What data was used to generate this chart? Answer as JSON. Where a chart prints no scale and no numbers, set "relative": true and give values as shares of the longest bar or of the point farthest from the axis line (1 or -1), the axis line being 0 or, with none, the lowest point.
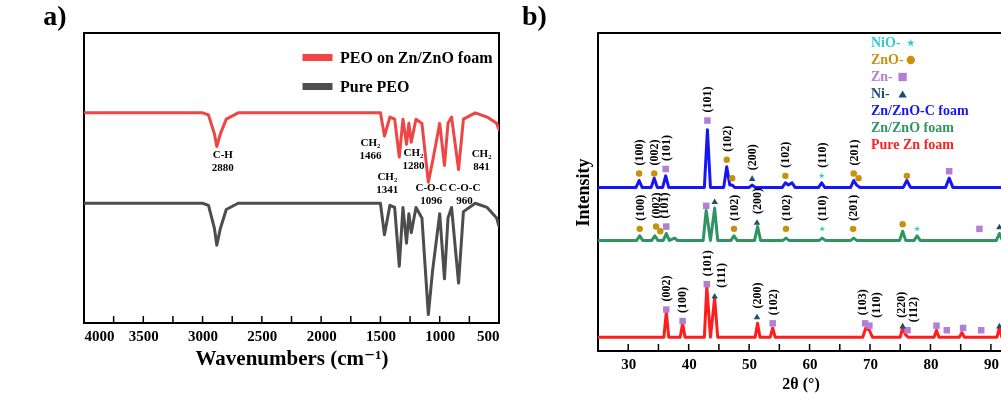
{
  "chart_data": [
    {
      "type": "line",
      "title": "a)",
      "xlabel": "Wavenumbers (cm⁻¹)",
      "relative": true,
      "legend": "top right",
      "xlim": [
        4000,
        500
      ],
      "xticks": [
        4000,
        {
          "value": 3750,
          "label": null
        },
        3500,
        {
          "value": 3250,
          "label": null
        },
        3000,
        {
          "value": 2750,
          "label": null
        },
        2500,
        {
          "value": 2250,
          "label": null
        },
        2000,
        {
          "value": 1750,
          "label": null
        },
        1500,
        {
          "value": 1250,
          "label": null
        },
        1000,
        {
          "value": 750,
          "label": null
        },
        500
      ],
      "x": [
        4000,
        3000,
        2950,
        2900,
        2880,
        2850,
        2800,
        2700,
        1500,
        1466,
        1420,
        1380,
        1341,
        1310,
        1280,
        1260,
        1240,
        1200,
        1150,
        1096,
        1060,
        1000,
        960,
        930,
        900,
        841,
        800,
        700,
        600,
        520,
        500
      ],
      "series": [
        {
          "name": "PEO on Zn/ZnO foam",
          "color": "#f04545",
          "values": [
            1.0,
            1.0,
            0.99,
            0.9,
            0.84,
            0.9,
            0.97,
            1.0,
            1.0,
            0.89,
            0.98,
            0.97,
            0.79,
            0.97,
            0.85,
            0.95,
            0.86,
            0.97,
            0.95,
            0.67,
            0.77,
            0.95,
            0.75,
            0.95,
            0.98,
            0.73,
            0.97,
            1.0,
            0.98,
            0.95,
            0.92
          ]
        },
        {
          "name": "Pure PEO",
          "color": "#4d4d4d",
          "values": [
            0.57,
            0.57,
            0.56,
            0.45,
            0.37,
            0.45,
            0.54,
            0.57,
            0.57,
            0.42,
            0.56,
            0.55,
            0.27,
            0.55,
            0.38,
            0.52,
            0.43,
            0.55,
            0.5,
            0.04,
            0.25,
            0.52,
            0.21,
            0.5,
            0.55,
            0.19,
            0.53,
            0.57,
            0.55,
            0.5,
            0.46
          ]
        }
      ],
      "annotations": [
        {
          "text": "C-H\n2880",
          "x": 2880,
          "y": 0.84
        },
        {
          "text": "CH₂\n1466",
          "x": 1466,
          "y": 0.89
        },
        {
          "text": "CH₂\n1341",
          "x": 1341,
          "y": 0.79
        },
        {
          "text": "CH₂\n1280",
          "x": 1280,
          "y": 0.85
        },
        {
          "text": "C-O-C\n1096",
          "x": 1096,
          "y": 0.67
        },
        {
          "text": "C-O-C\n960",
          "x": 960,
          "y": 0.75
        },
        {
          "text": "CH₂\n841",
          "x": 841,
          "y": 0.73
        }
      ]
    },
    {
      "type": "line",
      "title": "b)",
      "xlabel": "2θ (°)",
      "ylabel": "Intensity",
      "relative": true,
      "legend": "top right",
      "xlim": [
        25,
        92
      ],
      "xticks": [
        30,
        {
          "value": 35,
          "label": null
        },
        40,
        {
          "value": 45,
          "label": null
        },
        50,
        {
          "value": 55,
          "label": null
        },
        60,
        {
          "value": 65,
          "label": null
        },
        70,
        {
          "value": 75,
          "label": null
        },
        80,
        {
          "value": 85,
          "label": null
        },
        90
      ],
      "series": [
        {
          "name": "NiO-",
          "type": "scatter",
          "marker": "star",
          "color": "#33cccc",
          "x": [
            62.0,
            62.1,
            77.8
          ],
          "values": [
            0.76,
            0.53,
            0.53
          ]
        },
        {
          "name": "ZnO-",
          "type": "scatter",
          "marker": "circle",
          "color": "#c8900f",
          "x": [
            31.8,
            34.3,
            46.3,
            47.2,
            56.0,
            67.3,
            68.1,
            76.1,
            31.9,
            34.6,
            35.3,
            47.5,
            56.1,
            67.2,
            75.4
          ],
          "values": [
            0.77,
            0.77,
            0.83,
            0.75,
            0.76,
            0.77,
            0.75,
            0.76,
            0.53,
            0.54,
            0.52,
            0.53,
            0.53,
            0.53,
            0.55
          ]
        },
        {
          "name": "Zn-",
          "type": "scatter",
          "marker": "square",
          "color": "#b27fd6",
          "x": [
            36.2,
            43.1,
            83.1,
            36.3,
            42.9,
            88.1,
            36.3,
            39.0,
            43.0,
            53.9,
            69.2,
            69.9,
            76.2,
            81.0,
            82.7,
            85.4,
            88.4
          ],
          "values": [
            0.79,
            1.0,
            0.78,
            0.54,
            0.63,
            0.53,
            0.18,
            0.13,
            0.29,
            0.12,
            0.12,
            0.11,
            0.09,
            0.11,
            0.09,
            0.1,
            0.09
          ]
        },
        {
          "name": "Ni-",
          "type": "scatter",
          "marker": "triangle",
          "color": "#1f4e6e",
          "x": [
            50.5,
            44.3,
            51.3,
            91.4,
            44.3,
            51.3,
            75.4,
            91.4
          ],
          "values": [
            0.75,
            0.65,
            0.56,
            0.54,
            0.24,
            0.15,
            0.11,
            0.11
          ]
        },
        {
          "name": "Zn/ZnO-C foam",
          "color": "#1515f5",
          "x": [
            25,
            31.3,
            31.8,
            32.3,
            33.8,
            34.3,
            34.8,
            35.7,
            36.2,
            36.7,
            42.6,
            43.1,
            43.6,
            45.8,
            46.3,
            46.8,
            47.2,
            47.6,
            50.0,
            50.5,
            51.0,
            55.5,
            56.0,
            56.5,
            57.1,
            57.6,
            61.5,
            62.0,
            62.5,
            66.8,
            67.3,
            67.8,
            68.3,
            75.5,
            76.1,
            76.7,
            82.5,
            83.1,
            83.7,
            92
          ],
          "values": [
            0.71,
            0.71,
            0.74,
            0.71,
            0.71,
            0.75,
            0.71,
            0.71,
            0.76,
            0.71,
            0.71,
            0.96,
            0.71,
            0.71,
            0.8,
            0.72,
            0.72,
            0.71,
            0.71,
            0.72,
            0.71,
            0.71,
            0.73,
            0.72,
            0.73,
            0.71,
            0.71,
            0.73,
            0.71,
            0.71,
            0.74,
            0.72,
            0.71,
            0.71,
            0.74,
            0.71,
            0.71,
            0.75,
            0.71,
            0.71
          ]
        },
        {
          "name": "Zn/ZnO foam",
          "color": "#2e9460",
          "x": [
            25,
            31.4,
            31.9,
            32.4,
            33.9,
            34.4,
            34.9,
            35.8,
            36.3,
            36.8,
            37.7,
            38.1,
            42.4,
            42.9,
            43.6,
            44.3,
            44.8,
            47.0,
            47.5,
            48.0,
            50.9,
            51.4,
            51.9,
            55.6,
            56.1,
            56.6,
            61.6,
            62.1,
            62.6,
            66.8,
            67.3,
            67.8,
            74.9,
            75.4,
            75.9,
            77.3,
            77.8,
            78.3,
            90.9,
            91.4,
            91.9,
            92
          ],
          "values": [
            0.48,
            0.48,
            0.5,
            0.48,
            0.48,
            0.5,
            0.48,
            0.48,
            0.51,
            0.48,
            0.49,
            0.48,
            0.48,
            0.61,
            0.48,
            0.62,
            0.48,
            0.48,
            0.5,
            0.48,
            0.48,
            0.54,
            0.48,
            0.48,
            0.49,
            0.48,
            0.48,
            0.49,
            0.48,
            0.48,
            0.49,
            0.48,
            0.48,
            0.52,
            0.48,
            0.48,
            0.5,
            0.48,
            0.48,
            0.51,
            0.48,
            0.49
          ]
        },
        {
          "name": "Pure Zn foam",
          "color": "#ff1e1e",
          "x": [
            25,
            35.9,
            36.3,
            36.7,
            38.6,
            39.0,
            39.4,
            42.6,
            43.0,
            43.6,
            44.3,
            44.8,
            51.0,
            51.4,
            51.8,
            53.5,
            53.9,
            54.3,
            68.8,
            69.3,
            69.9,
            70.4,
            75.0,
            75.4,
            75.9,
            76.3,
            80.6,
            81.0,
            81.4,
            84.8,
            85.2,
            85.6,
            91.0,
            91.4,
            91.8,
            92
          ],
          "values": [
            0.06,
            0.06,
            0.17,
            0.06,
            0.06,
            0.12,
            0.06,
            0.06,
            0.28,
            0.06,
            0.23,
            0.06,
            0.06,
            0.12,
            0.06,
            0.06,
            0.1,
            0.06,
            0.06,
            0.1,
            0.09,
            0.06,
            0.06,
            0.1,
            0.07,
            0.06,
            0.06,
            0.09,
            0.06,
            0.06,
            0.08,
            0.06,
            0.06,
            0.1,
            0.06,
            0.06
          ]
        }
      ],
      "annotations": [
        {
          "text": "(100)",
          "x": 31.8,
          "y": 0.77
        },
        {
          "text": "(002)",
          "x": 34.3,
          "y": 0.77
        },
        {
          "text": "(101)",
          "x": 36.2,
          "y": 0.79
        },
        {
          "text": "(101)",
          "x": 43.1,
          "y": 1.0
        },
        {
          "text": "(102)",
          "x": 46.3,
          "y": 0.83
        },
        {
          "text": "(200)",
          "x": 50.5,
          "y": 0.75
        },
        {
          "text": "(102)",
          "x": 56.0,
          "y": 0.76
        },
        {
          "text": "(110)",
          "x": 62.0,
          "y": 0.76
        },
        {
          "text": "(201)",
          "x": 67.3,
          "y": 0.77
        },
        {
          "text": "(100)",
          "x": 31.9,
          "y": 0.53
        },
        {
          "text": "(002)",
          "x": 34.6,
          "y": 0.54
        },
        {
          "text": "(101)",
          "x": 36.3,
          "y": 0.54
        },
        {
          "text": "(102)",
          "x": 47.5,
          "y": 0.53
        },
        {
          "text": "(200)",
          "x": 51.3,
          "y": 0.56
        },
        {
          "text": "(102)",
          "x": 56.1,
          "y": 0.53
        },
        {
          "text": "(110)",
          "x": 62.1,
          "y": 0.53
        },
        {
          "text": "(201)",
          "x": 67.2,
          "y": 0.53
        },
        {
          "text": "(002)",
          "x": 36.3,
          "y": 0.18
        },
        {
          "text": "(100)",
          "x": 39.0,
          "y": 0.13
        },
        {
          "text": "(101)",
          "x": 43.0,
          "y": 0.29
        },
        {
          "text": "(111)",
          "x": 44.3,
          "y": 0.24
        },
        {
          "text": "(200)",
          "x": 51.3,
          "y": 0.15
        },
        {
          "text": "(102)",
          "x": 53.9,
          "y": 0.12
        },
        {
          "text": "(103)",
          "x": 69.2,
          "y": 0.12
        },
        {
          "text": "(110)",
          "x": 69.9,
          "y": 0.11
        },
        {
          "text": "(220)",
          "x": 75.4,
          "y": 0.11
        },
        {
          "text": "(112)",
          "x": 76.2,
          "y": 0.09
        }
      ]
    }
  ]
}
